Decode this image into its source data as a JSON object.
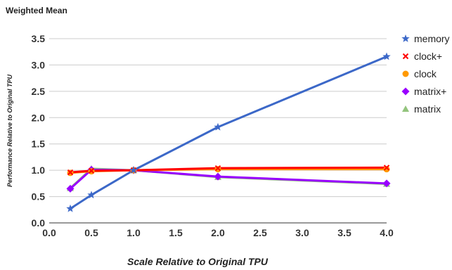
{
  "chart_data": {
    "type": "line",
    "title": "Weighted Mean",
    "xlabel": "Scale Relative to Original TPU",
    "ylabel": "Performance Relative to Original TPU",
    "xlim": [
      0,
      4
    ],
    "ylim": [
      0,
      3.5
    ],
    "x_ticks": [
      "0.0",
      "0.5",
      "1.0",
      "1.5",
      "2.0",
      "2.5",
      "3.0",
      "3.5",
      "4.0"
    ],
    "y_ticks": [
      "0.0",
      "0.5",
      "1.0",
      "1.5",
      "2.0",
      "2.5",
      "3.0",
      "3.5"
    ],
    "grid": "horizontal",
    "legend_position": "right",
    "series": [
      {
        "name": "matrix",
        "color": "#93c47d",
        "marker": "triangle",
        "x": [
          0.25,
          0.5,
          1,
          2,
          4
        ],
        "y": [
          0.66,
          1.03,
          1.0,
          0.87,
          0.74
        ]
      },
      {
        "name": "matrix+",
        "color": "#9900ff",
        "marker": "diamond",
        "x": [
          0.25,
          0.5,
          1,
          2,
          4
        ],
        "y": [
          0.65,
          1.01,
          1.0,
          0.88,
          0.75
        ]
      },
      {
        "name": "clock",
        "color": "#ff9900",
        "marker": "circle",
        "x": [
          0.25,
          0.5,
          1,
          2,
          4
        ],
        "y": [
          0.95,
          0.98,
          1.0,
          1.02,
          1.02
        ]
      },
      {
        "name": "clock+",
        "color": "#ff0000",
        "marker": "x",
        "x": [
          0.25,
          0.5,
          1,
          2,
          4
        ],
        "y": [
          0.96,
          0.99,
          1.0,
          1.04,
          1.05
        ]
      },
      {
        "name": "memory",
        "color": "#3c68c8",
        "marker": "star",
        "x": [
          0.25,
          0.5,
          1,
          2,
          4
        ],
        "y": [
          0.27,
          0.53,
          1.0,
          1.82,
          3.16
        ]
      }
    ],
    "legend_order": [
      "memory",
      "clock+",
      "clock",
      "matrix+",
      "matrix"
    ]
  }
}
